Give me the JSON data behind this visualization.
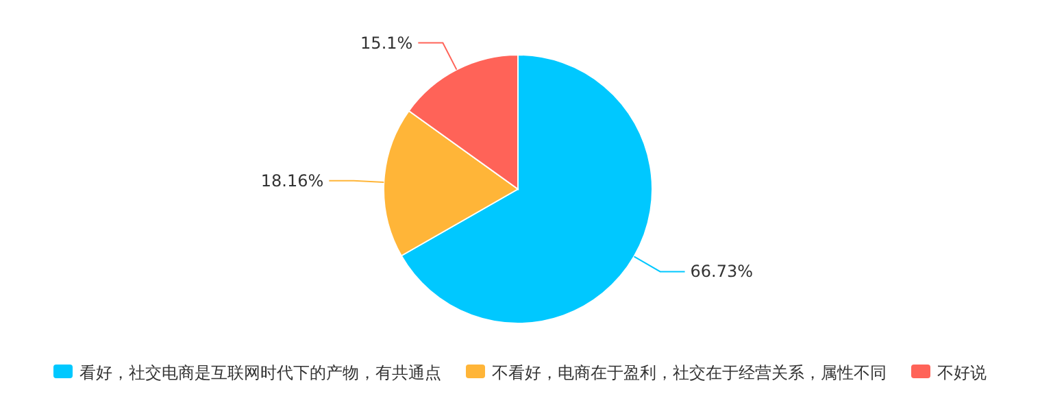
{
  "chart_data": {
    "type": "pie",
    "categories": [
      "看好，社交电商是互联网时代下的产物，有共通点",
      "不看好，电商在于盈利，社交在于经营关系，属性不同",
      "不好说"
    ],
    "values": [
      66.73,
      18.16,
      15.1
    ],
    "colors": [
      "#00c8ff",
      "#ffb538",
      "#ff6358"
    ],
    "value_labels": [
      "66.73%",
      "18.16%",
      "15.1%"
    ],
    "legend": "bottom"
  }
}
